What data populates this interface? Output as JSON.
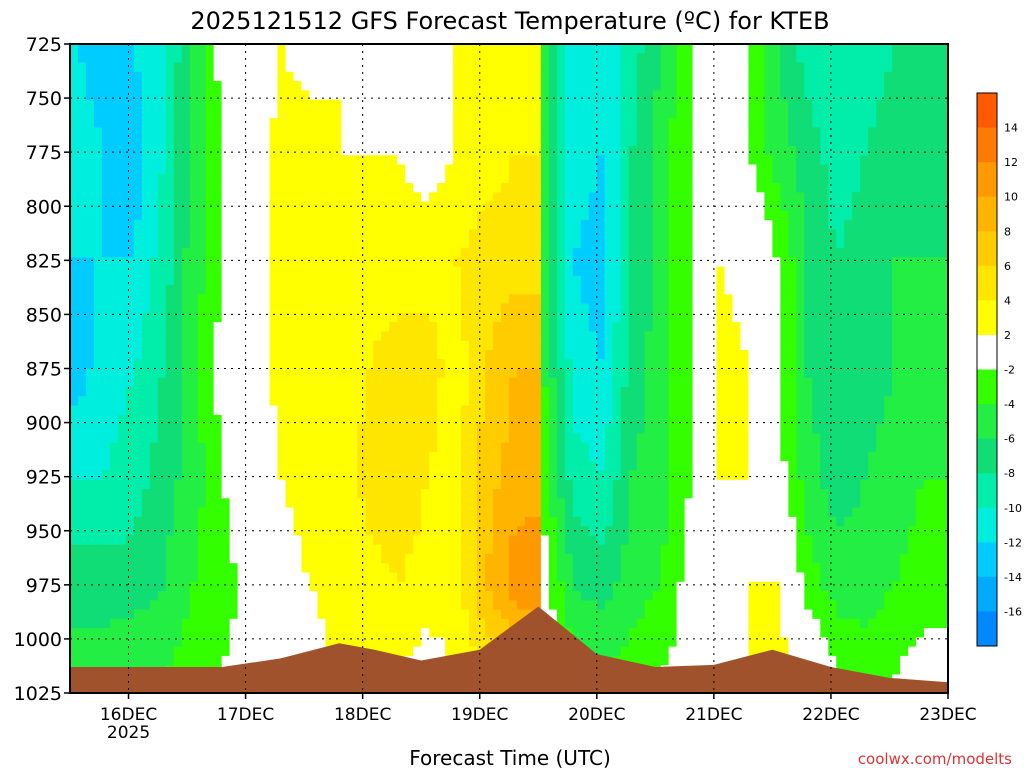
{
  "chart_data": {
    "type": "heatmap",
    "title": "2025121512 GFS Forecast Temperature (ºC) for KTEB",
    "xlabel": "Forecast Time (UTC)",
    "ylabel": "",
    "credit": "coolwx.com/modelts",
    "x_ticks": [
      "16DEC",
      "17DEC",
      "18DEC",
      "19DEC",
      "20DEC",
      "21DEC",
      "22DEC",
      "23DEC"
    ],
    "x_year": "2025",
    "xlim": [
      15.5,
      23.0
    ],
    "y_ticks": [
      725,
      750,
      775,
      800,
      825,
      850,
      875,
      900,
      925,
      950,
      975,
      1000,
      1025
    ],
    "ylim": [
      1025,
      725
    ],
    "grid": true,
    "colorbar": {
      "labels": [
        14,
        12,
        10,
        8,
        6,
        4,
        2,
        -2,
        -4,
        -6,
        -8,
        -10,
        -12,
        -14,
        -16
      ],
      "colors": [
        "#ff5a00",
        "#ff7a00",
        "#ff9900",
        "#ffb400",
        "#ffcc00",
        "#ffe600",
        "#ffff00",
        "#ffffff",
        "#33ff00",
        "#22ee44",
        "#11dd77",
        "#00eeaa",
        "#00eedd",
        "#00ccff",
        "#00aaff",
        "#0088ff"
      ]
    },
    "time_columns": [
      15.55,
      15.8,
      16.05,
      16.3,
      16.55,
      16.8,
      17.05,
      17.3,
      17.55,
      17.8,
      18.05,
      18.3,
      18.55,
      18.8,
      19.05,
      19.3,
      19.5,
      19.55,
      19.8,
      20.05,
      20.3,
      20.55,
      20.8,
      21.05,
      21.3,
      21.55,
      21.8,
      22.05,
      22.3,
      22.55,
      22.8,
      23.0
    ],
    "pressure_levels": [
      725,
      775,
      825,
      875,
      925,
      975,
      1015
    ],
    "temperature_grid": [
      [
        -12,
        -13,
        -12,
        -10,
        -6,
        -1,
        0,
        2,
        1,
        2,
        1,
        2,
        1,
        2,
        2,
        3,
        3,
        -5,
        -11,
        -12,
        -9,
        -6,
        -2,
        0,
        -2,
        -6,
        -9,
        -10,
        -9,
        -8,
        -8,
        -8
      ],
      [
        -11,
        -12,
        -13,
        -10,
        -5,
        -2,
        0,
        3,
        3,
        2,
        2,
        2,
        1,
        2,
        3,
        4,
        4,
        -5,
        -11,
        -12,
        -8,
        -5,
        -2,
        0,
        -2,
        -5,
        -7,
        -9,
        -8,
        -7,
        -7,
        -7
      ],
      [
        -12,
        -12,
        -12,
        -9,
        -5,
        -2,
        0,
        4,
        3,
        4,
        3,
        3,
        3,
        4,
        5,
        5,
        5,
        -5,
        -12,
        -13,
        -8,
        -5,
        -2,
        2,
        1,
        -2,
        -6,
        -8,
        -7,
        -6,
        -6,
        -6
      ],
      [
        -13,
        -11,
        -10,
        -8,
        -5,
        -1,
        0,
        3,
        4,
        3,
        4,
        5,
        5,
        3,
        6,
        8,
        8,
        -4,
        -11,
        -12,
        -7,
        -5,
        -2,
        3,
        2,
        -2,
        -6,
        -8,
        -7,
        -6,
        -5,
        -5
      ],
      [
        -10,
        -10,
        -9,
        -7,
        -5,
        -2,
        0,
        2,
        3,
        2,
        5,
        6,
        4,
        3,
        7,
        9,
        9,
        -3,
        -9,
        -10,
        -6,
        -5,
        -2,
        2,
        2,
        -1,
        -5,
        -7,
        -6,
        -5,
        -4,
        -4
      ],
      [
        -7,
        -7,
        -7,
        -6,
        -4,
        -3,
        -1,
        1,
        2,
        3,
        3,
        4,
        3,
        3,
        8,
        11,
        12,
        -1,
        -6,
        -7,
        -5,
        -4,
        -1,
        0,
        2,
        2,
        -3,
        -5,
        -5,
        -4,
        -3,
        -3
      ],
      [
        -5,
        -5,
        -4,
        -4,
        -3,
        -2,
        -1,
        0,
        1,
        2,
        2,
        2,
        1,
        2,
        4,
        6,
        7,
        0,
        -3,
        -4,
        -3,
        -2,
        -1,
        0,
        2,
        3,
        1,
        -2,
        -3,
        -2,
        -1,
        -1
      ]
    ]
  }
}
